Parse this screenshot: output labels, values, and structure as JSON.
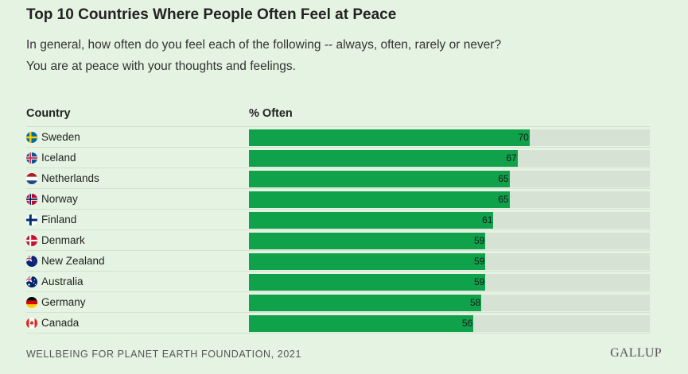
{
  "title": "Top 10 Countries Where People Often Feel at Peace",
  "subtitle_line1": "In general, how often do you feel each of the following -- always, often, rarely or never?",
  "subtitle_line2": "You are at peace with your thoughts and feelings.",
  "header": {
    "country": "Country",
    "pct": "% Often"
  },
  "footer": {
    "source": "WELLBEING FOR PLANET EARTH FOUNDATION, 2021",
    "logo": "GALLUP"
  },
  "colors": {
    "bar": "#10a14b",
    "track": "#d6e2d3",
    "background": "#e5f3e2"
  },
  "chart_data": {
    "type": "bar",
    "orientation": "horizontal",
    "categories": [
      "Sweden",
      "Iceland",
      "Netherlands",
      "Norway",
      "Finland",
      "Denmark",
      "New Zealand",
      "Australia",
      "Germany",
      "Canada"
    ],
    "values": [
      70,
      67,
      65,
      65,
      61,
      59,
      59,
      59,
      58,
      56
    ],
    "xlim": [
      0,
      100
    ],
    "data_labels": true
  },
  "flags": [
    "sweden-flag-icon",
    "iceland-flag-icon",
    "netherlands-flag-icon",
    "norway-flag-icon",
    "finland-flag-icon",
    "denmark-flag-icon",
    "new-zealand-flag-icon",
    "australia-flag-icon",
    "germany-flag-icon",
    "canada-flag-icon"
  ]
}
